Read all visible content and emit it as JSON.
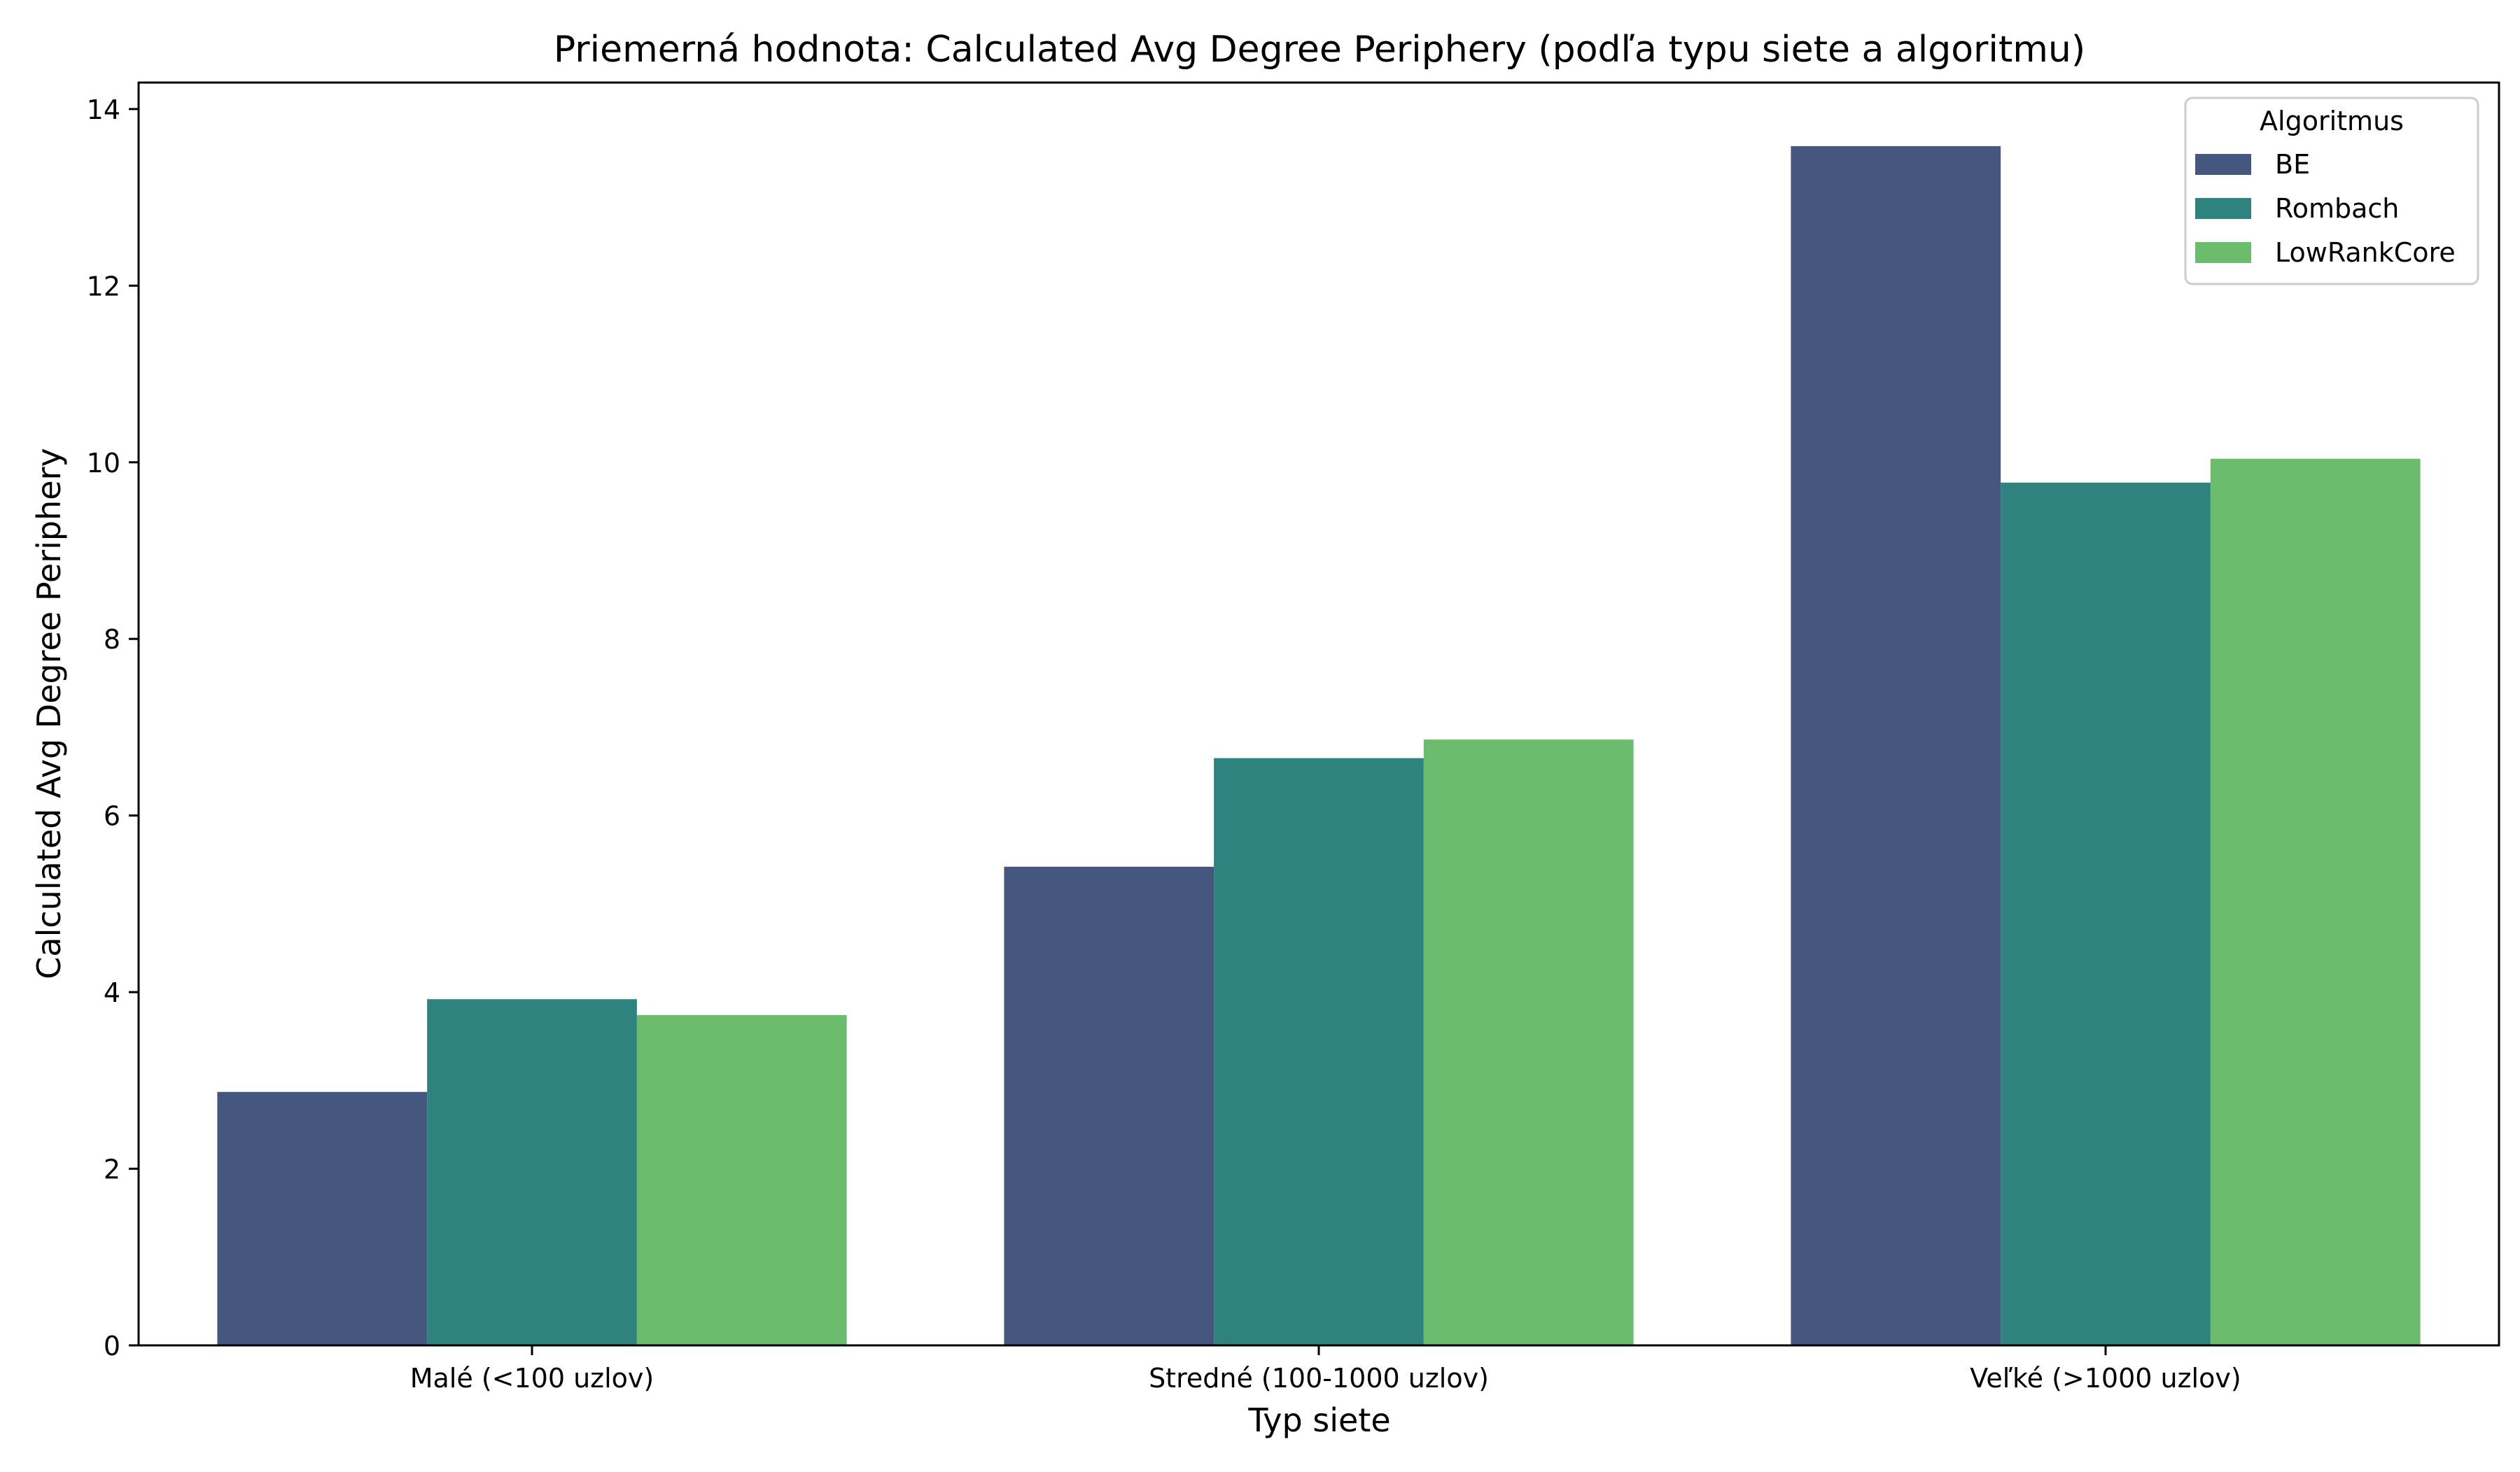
{
  "chart_data": {
    "type": "bar",
    "title": "Priemerná hodnota: Calculated Avg Degree Periphery (podľa typu siete a algoritmu)",
    "xlabel": "Typ siete",
    "ylabel": "Calculated Avg Degree Periphery",
    "categories": [
      "Malé (<100 uzlov)",
      "Stredné (100-1000 uzlov)",
      "Veľké (>1000 uzlov)"
    ],
    "series": [
      {
        "name": "BE",
        "color": "#46577f",
        "values": [
          2.87,
          5.42,
          13.58
        ]
      },
      {
        "name": "Rombach",
        "color": "#2e837e",
        "values": [
          3.92,
          6.65,
          9.77
        ]
      },
      {
        "name": "LowRankCore",
        "color": "#6bbd6d",
        "values": [
          3.74,
          6.86,
          10.04
        ]
      }
    ],
    "ylim": [
      0,
      14.3
    ],
    "yticks": [
      0,
      2,
      4,
      6,
      8,
      10,
      12,
      14
    ],
    "grid": false,
    "legend": {
      "title": "Algoritmus",
      "position": "top-right"
    }
  }
}
